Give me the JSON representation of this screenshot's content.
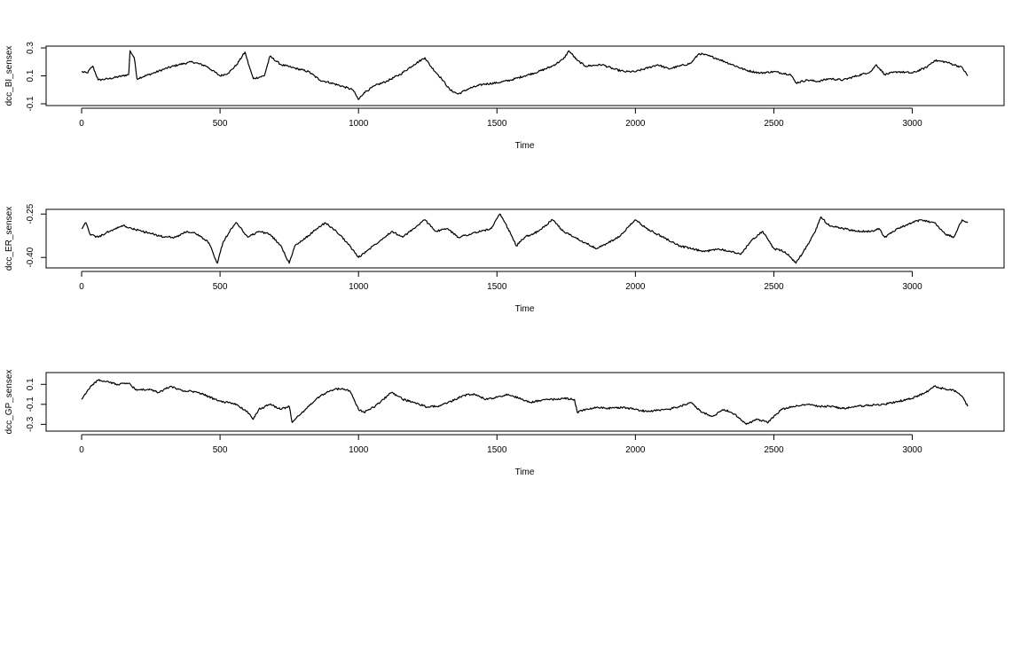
{
  "chart_data": [
    {
      "type": "line",
      "xlabel": "Time",
      "ylabel": "dcc_BI_sensex",
      "xlim": [
        0,
        3200
      ],
      "ylim": [
        -0.1,
        0.3
      ],
      "xticks": [
        0,
        500,
        1000,
        1500,
        2000,
        2500,
        3000
      ],
      "yticks": [
        -0.1,
        0.1,
        0.3
      ],
      "ytick_labels": [
        "-0.1",
        "0.1",
        "0.3"
      ],
      "series": [
        {
          "color": "#000000",
          "points": [
            [
              0,
              0.13
            ],
            [
              20,
              0.12
            ],
            [
              40,
              0.17
            ],
            [
              60,
              0.07
            ],
            [
              100,
              0.08
            ],
            [
              150,
              0.1
            ],
            [
              170,
              0.11
            ],
            [
              175,
              0.28
            ],
            [
              190,
              0.23
            ],
            [
              200,
              0.08
            ],
            [
              260,
              0.12
            ],
            [
              300,
              0.15
            ],
            [
              350,
              0.18
            ],
            [
              400,
              0.2
            ],
            [
              450,
              0.17
            ],
            [
              500,
              0.1
            ],
            [
              530,
              0.12
            ],
            [
              560,
              0.18
            ],
            [
              590,
              0.27
            ],
            [
              605,
              0.17
            ],
            [
              620,
              0.08
            ],
            [
              660,
              0.1
            ],
            [
              680,
              0.24
            ],
            [
              720,
              0.18
            ],
            [
              760,
              0.16
            ],
            [
              820,
              0.13
            ],
            [
              860,
              0.07
            ],
            [
              900,
              0.05
            ],
            [
              950,
              0.02
            ],
            [
              980,
              0.0
            ],
            [
              1000,
              -0.07
            ],
            [
              1020,
              -0.02
            ],
            [
              1060,
              0.03
            ],
            [
              1100,
              0.06
            ],
            [
              1150,
              0.11
            ],
            [
              1200,
              0.18
            ],
            [
              1240,
              0.23
            ],
            [
              1260,
              0.17
            ],
            [
              1300,
              0.08
            ],
            [
              1330,
              0.0
            ],
            [
              1360,
              -0.03
            ],
            [
              1400,
              0.01
            ],
            [
              1450,
              0.04
            ],
            [
              1500,
              0.05
            ],
            [
              1550,
              0.07
            ],
            [
              1600,
              0.1
            ],
            [
              1650,
              0.13
            ],
            [
              1700,
              0.17
            ],
            [
              1740,
              0.22
            ],
            [
              1760,
              0.28
            ],
            [
              1790,
              0.21
            ],
            [
              1820,
              0.17
            ],
            [
              1880,
              0.18
            ],
            [
              1920,
              0.15
            ],
            [
              1960,
              0.13
            ],
            [
              2000,
              0.13
            ],
            [
              2050,
              0.16
            ],
            [
              2080,
              0.18
            ],
            [
              2120,
              0.15
            ],
            [
              2160,
              0.17
            ],
            [
              2200,
              0.19
            ],
            [
              2230,
              0.26
            ],
            [
              2270,
              0.24
            ],
            [
              2300,
              0.22
            ],
            [
              2350,
              0.18
            ],
            [
              2400,
              0.14
            ],
            [
              2450,
              0.12
            ],
            [
              2500,
              0.13
            ],
            [
              2560,
              0.11
            ],
            [
              2580,
              0.05
            ],
            [
              2620,
              0.07
            ],
            [
              2660,
              0.06
            ],
            [
              2700,
              0.08
            ],
            [
              2750,
              0.07
            ],
            [
              2800,
              0.1
            ],
            [
              2850,
              0.13
            ],
            [
              2870,
              0.18
            ],
            [
              2900,
              0.11
            ],
            [
              2950,
              0.13
            ],
            [
              3000,
              0.12
            ],
            [
              3050,
              0.16
            ],
            [
              3080,
              0.21
            ],
            [
              3120,
              0.2
            ],
            [
              3150,
              0.18
            ],
            [
              3180,
              0.16
            ],
            [
              3200,
              0.1
            ]
          ]
        }
      ]
    },
    {
      "type": "line",
      "xlabel": "Time",
      "ylabel": "dcc_ER_sensex",
      "xlim": [
        0,
        3200
      ],
      "ylim": [
        -0.43,
        -0.24
      ],
      "xticks": [
        0,
        500,
        1000,
        1500,
        2000,
        2500,
        3000
      ],
      "yticks": [
        -0.4,
        -0.25
      ],
      "ytick_labels": [
        "-0.40",
        "-0.25"
      ],
      "series": [
        {
          "color": "#000000",
          "points": [
            [
              0,
              -0.3
            ],
            [
              15,
              -0.28
            ],
            [
              30,
              -0.32
            ],
            [
              60,
              -0.33
            ],
            [
              100,
              -0.31
            ],
            [
              150,
              -0.29
            ],
            [
              180,
              -0.3
            ],
            [
              220,
              -0.31
            ],
            [
              260,
              -0.32
            ],
            [
              300,
              -0.33
            ],
            [
              340,
              -0.33
            ],
            [
              380,
              -0.31
            ],
            [
              420,
              -0.32
            ],
            [
              460,
              -0.35
            ],
            [
              490,
              -0.42
            ],
            [
              510,
              -0.35
            ],
            [
              540,
              -0.3
            ],
            [
              560,
              -0.28
            ],
            [
              600,
              -0.33
            ],
            [
              640,
              -0.31
            ],
            [
              680,
              -0.32
            ],
            [
              720,
              -0.36
            ],
            [
              750,
              -0.42
            ],
            [
              770,
              -0.36
            ],
            [
              800,
              -0.34
            ],
            [
              850,
              -0.3
            ],
            [
              880,
              -0.28
            ],
            [
              920,
              -0.31
            ],
            [
              960,
              -0.35
            ],
            [
              1000,
              -0.4
            ],
            [
              1040,
              -0.37
            ],
            [
              1080,
              -0.34
            ],
            [
              1120,
              -0.31
            ],
            [
              1160,
              -0.33
            ],
            [
              1200,
              -0.3
            ],
            [
              1240,
              -0.27
            ],
            [
              1280,
              -0.31
            ],
            [
              1320,
              -0.3
            ],
            [
              1360,
              -0.33
            ],
            [
              1400,
              -0.32
            ],
            [
              1440,
              -0.31
            ],
            [
              1480,
              -0.3
            ],
            [
              1510,
              -0.25
            ],
            [
              1540,
              -0.3
            ],
            [
              1570,
              -0.36
            ],
            [
              1600,
              -0.33
            ],
            [
              1650,
              -0.31
            ],
            [
              1700,
              -0.27
            ],
            [
              1740,
              -0.31
            ],
            [
              1780,
              -0.33
            ],
            [
              1820,
              -0.35
            ],
            [
              1860,
              -0.37
            ],
            [
              1900,
              -0.35
            ],
            [
              1940,
              -0.33
            ],
            [
              1980,
              -0.29
            ],
            [
              2000,
              -0.27
            ],
            [
              2040,
              -0.3
            ],
            [
              2080,
              -0.32
            ],
            [
              2120,
              -0.34
            ],
            [
              2160,
              -0.36
            ],
            [
              2200,
              -0.37
            ],
            [
              2250,
              -0.38
            ],
            [
              2300,
              -0.37
            ],
            [
              2350,
              -0.38
            ],
            [
              2380,
              -0.39
            ],
            [
              2420,
              -0.34
            ],
            [
              2460,
              -0.31
            ],
            [
              2500,
              -0.37
            ],
            [
              2540,
              -0.38
            ],
            [
              2580,
              -0.42
            ],
            [
              2620,
              -0.36
            ],
            [
              2650,
              -0.31
            ],
            [
              2670,
              -0.26
            ],
            [
              2700,
              -0.29
            ],
            [
              2750,
              -0.3
            ],
            [
              2800,
              -0.31
            ],
            [
              2850,
              -0.31
            ],
            [
              2880,
              -0.3
            ],
            [
              2900,
              -0.33
            ],
            [
              2950,
              -0.3
            ],
            [
              3000,
              -0.28
            ],
            [
              3030,
              -0.27
            ],
            [
              3080,
              -0.28
            ],
            [
              3120,
              -0.32
            ],
            [
              3150,
              -0.33
            ],
            [
              3180,
              -0.27
            ],
            [
              3200,
              -0.28
            ]
          ]
        }
      ]
    },
    {
      "type": "line",
      "xlabel": "Time",
      "ylabel": "dcc_GP_sensex",
      "xlim": [
        0,
        3200
      ],
      "ylim": [
        -0.35,
        0.2
      ],
      "xticks": [
        0,
        500,
        1000,
        1500,
        2000,
        2500,
        3000
      ],
      "yticks": [
        -0.3,
        -0.1,
        0.1
      ],
      "ytick_labels": [
        "-0.3",
        "-0.1",
        "0.1"
      ],
      "series": [
        {
          "color": "#000000",
          "points": [
            [
              0,
              -0.05
            ],
            [
              20,
              0.03
            ],
            [
              40,
              0.1
            ],
            [
              60,
              0.14
            ],
            [
              90,
              0.13
            ],
            [
              130,
              0.1
            ],
            [
              170,
              0.11
            ],
            [
              200,
              0.04
            ],
            [
              240,
              0.05
            ],
            [
              280,
              0.02
            ],
            [
              320,
              0.08
            ],
            [
              360,
              0.04
            ],
            [
              400,
              0.03
            ],
            [
              440,
              0.0
            ],
            [
              480,
              -0.05
            ],
            [
              520,
              -0.08
            ],
            [
              560,
              -0.1
            ],
            [
              600,
              -0.18
            ],
            [
              620,
              -0.25
            ],
            [
              640,
              -0.15
            ],
            [
              680,
              -0.1
            ],
            [
              720,
              -0.15
            ],
            [
              750,
              -0.12
            ],
            [
              760,
              -0.28
            ],
            [
              790,
              -0.2
            ],
            [
              820,
              -0.12
            ],
            [
              860,
              -0.02
            ],
            [
              900,
              0.04
            ],
            [
              940,
              0.06
            ],
            [
              970,
              0.03
            ],
            [
              1000,
              -0.15
            ],
            [
              1020,
              -0.18
            ],
            [
              1060,
              -0.12
            ],
            [
              1090,
              -0.05
            ],
            [
              1120,
              0.02
            ],
            [
              1160,
              -0.05
            ],
            [
              1200,
              -0.08
            ],
            [
              1250,
              -0.13
            ],
            [
              1300,
              -0.11
            ],
            [
              1350,
              -0.05
            ],
            [
              1380,
              -0.01
            ],
            [
              1420,
              0.0
            ],
            [
              1460,
              -0.05
            ],
            [
              1500,
              -0.03
            ],
            [
              1540,
              0.0
            ],
            [
              1580,
              -0.04
            ],
            [
              1620,
              -0.08
            ],
            [
              1660,
              -0.06
            ],
            [
              1700,
              -0.05
            ],
            [
              1740,
              -0.04
            ],
            [
              1780,
              -0.05
            ],
            [
              1790,
              -0.18
            ],
            [
              1820,
              -0.15
            ],
            [
              1860,
              -0.13
            ],
            [
              1900,
              -0.14
            ],
            [
              1950,
              -0.13
            ],
            [
              2000,
              -0.15
            ],
            [
              2040,
              -0.17
            ],
            [
              2080,
              -0.16
            ],
            [
              2120,
              -0.15
            ],
            [
              2160,
              -0.12
            ],
            [
              2200,
              -0.08
            ],
            [
              2240,
              -0.18
            ],
            [
              2280,
              -0.22
            ],
            [
              2320,
              -0.15
            ],
            [
              2360,
              -0.2
            ],
            [
              2380,
              -0.25
            ],
            [
              2400,
              -0.3
            ],
            [
              2440,
              -0.25
            ],
            [
              2480,
              -0.28
            ],
            [
              2500,
              -0.22
            ],
            [
              2530,
              -0.15
            ],
            [
              2570,
              -0.12
            ],
            [
              2620,
              -0.1
            ],
            [
              2660,
              -0.12
            ],
            [
              2700,
              -0.12
            ],
            [
              2750,
              -0.14
            ],
            [
              2800,
              -0.12
            ],
            [
              2850,
              -0.11
            ],
            [
              2900,
              -0.1
            ],
            [
              2950,
              -0.07
            ],
            [
              3000,
              -0.04
            ],
            [
              3050,
              0.02
            ],
            [
              3080,
              0.08
            ],
            [
              3120,
              0.05
            ],
            [
              3150,
              0.04
            ],
            [
              3180,
              -0.02
            ],
            [
              3200,
              -0.12
            ]
          ]
        }
      ]
    }
  ]
}
